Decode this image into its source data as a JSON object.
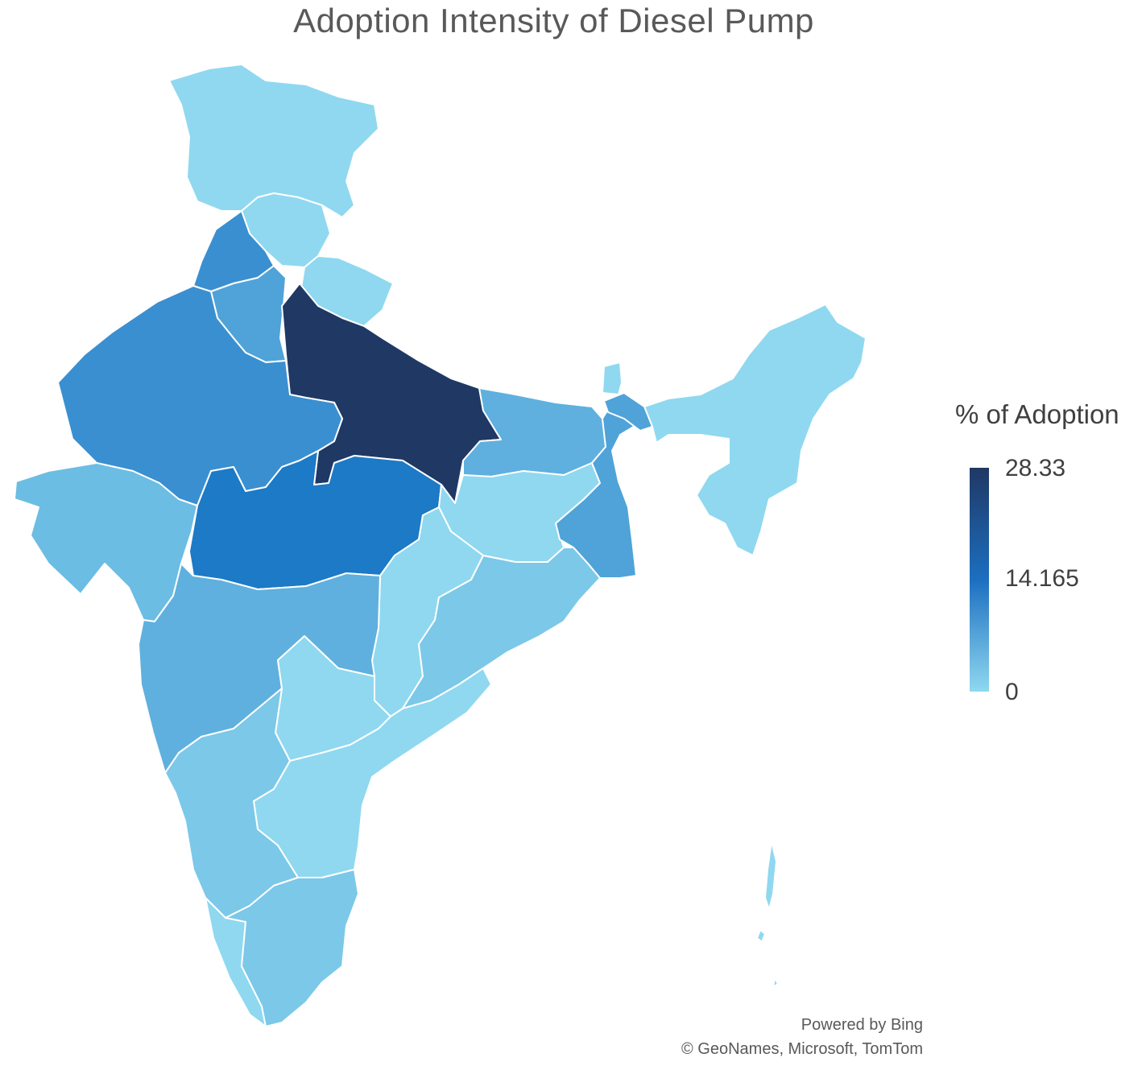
{
  "title": "Adoption  Intensity of Diesel Pump",
  "legend": {
    "title": "% of Adoption",
    "max_label": "28.33",
    "mid_label": "14.165",
    "min_label": "0",
    "color_high": "#1f3864",
    "color_mid": "#1c6fc0",
    "color_low": "#8fd8f0"
  },
  "regions": [
    {
      "id": "jammu-kashmir",
      "shade": "#8fd8f0"
    },
    {
      "id": "himachal-pradesh",
      "shade": "#8fd8f0"
    },
    {
      "id": "punjab",
      "shade": "#3a8fd0"
    },
    {
      "id": "haryana",
      "shade": "#4fa3d8"
    },
    {
      "id": "uttarakhand",
      "shade": "#8fd8f0"
    },
    {
      "id": "uttar-pradesh",
      "shade": "#1f3864"
    },
    {
      "id": "rajasthan",
      "shade": "#3a8fd0"
    },
    {
      "id": "gujarat",
      "shade": "#6bbde3"
    },
    {
      "id": "madhya-pradesh",
      "shade": "#1c7ac6"
    },
    {
      "id": "bihar",
      "shade": "#5fb0de"
    },
    {
      "id": "jharkhand",
      "shade": "#8fd8f0"
    },
    {
      "id": "west-bengal",
      "shade": "#4fa3d8"
    },
    {
      "id": "chhattisgarh",
      "shade": "#8fd8f0"
    },
    {
      "id": "odisha",
      "shade": "#7cc8e8"
    },
    {
      "id": "maharashtra",
      "shade": "#5fb0de"
    },
    {
      "id": "telangana",
      "shade": "#8fd8f0"
    },
    {
      "id": "andhra-pradesh",
      "shade": "#8fd8f0"
    },
    {
      "id": "karnataka",
      "shade": "#7cc8e8"
    },
    {
      "id": "kerala",
      "shade": "#8fd8f0"
    },
    {
      "id": "tamil-nadu",
      "shade": "#7cc8e8"
    },
    {
      "id": "sikkim",
      "shade": "#8fd8f0"
    },
    {
      "id": "assam-northeast",
      "shade": "#8fd8f0"
    },
    {
      "id": "tripura",
      "shade": "#4fa3d8"
    },
    {
      "id": "andaman-nicobar",
      "shade": "#8fd8f0"
    }
  ],
  "credits": {
    "line1": "Powered by Bing",
    "line2": "© GeoNames, Microsoft, TomTom"
  }
}
